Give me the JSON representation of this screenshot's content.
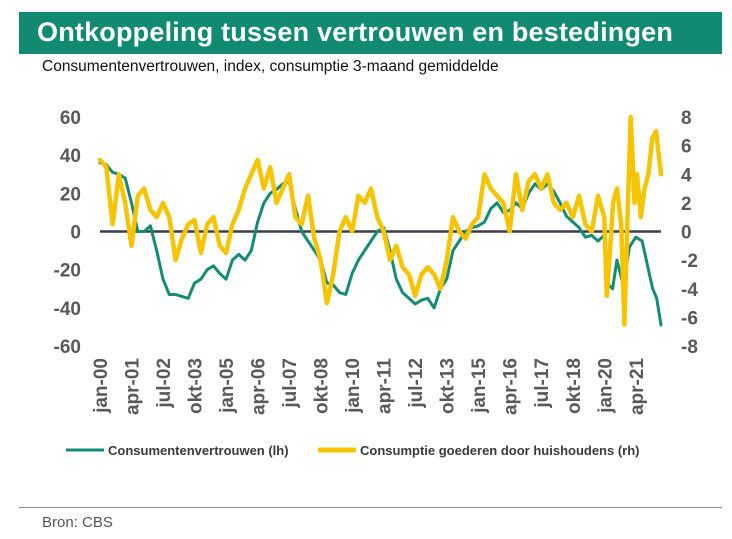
{
  "header": {
    "title": "Ontkoppeling tussen vertrouwen en bestedingen",
    "subtitle": "Consumentenvertrouwen, index, consumptie 3-maand gemiddelde"
  },
  "footer": {
    "source": "Bron: CBS"
  },
  "colors": {
    "title_bg": "#118a72",
    "series_lh": "#138c73",
    "series_rh": "#f6c400",
    "zero_line": "#3c3c4c",
    "axis_text": "#595959"
  },
  "chart_data": {
    "type": "line",
    "title": "Ontkoppeling tussen vertrouwen en bestedingen",
    "y_left": {
      "label": "",
      "lim": [
        -60,
        60
      ],
      "ticks": [
        60,
        40,
        20,
        0,
        -20,
        -40,
        -60
      ]
    },
    "y_right": {
      "label": "",
      "lim": [
        -8,
        8
      ],
      "ticks": [
        8,
        6,
        4,
        2,
        0,
        -2,
        -4,
        -6,
        -8
      ]
    },
    "x_range": [
      2000.0,
      2022.25
    ],
    "x_ticks": [
      {
        "label": "jan-00",
        "t": 2000.0
      },
      {
        "label": "apr-01",
        "t": 2001.25
      },
      {
        "label": "jul-02",
        "t": 2002.5
      },
      {
        "label": "okt-03",
        "t": 2003.75
      },
      {
        "label": "jan-05",
        "t": 2005.0
      },
      {
        "label": "apr-06",
        "t": 2006.25
      },
      {
        "label": "jul-07",
        "t": 2007.5
      },
      {
        "label": "okt-08",
        "t": 2008.75
      },
      {
        "label": "jan-10",
        "t": 2010.0
      },
      {
        "label": "apr-11",
        "t": 2011.25
      },
      {
        "label": "jul-12",
        "t": 2012.5
      },
      {
        "label": "okt-13",
        "t": 2013.75
      },
      {
        "label": "jan-15",
        "t": 2015.0
      },
      {
        "label": "apr-16",
        "t": 2016.25
      },
      {
        "label": "jul-17",
        "t": 2017.5
      },
      {
        "label": "okt-18",
        "t": 2018.75
      },
      {
        "label": "jan-20",
        "t": 2020.0
      },
      {
        "label": "apr-21",
        "t": 2021.25
      }
    ],
    "series": [
      {
        "name": "Consumentenvertrouwen (lh)",
        "axis": "left",
        "x": [
          2000.0,
          2000.25,
          2000.5,
          2000.75,
          2001.0,
          2001.25,
          2001.5,
          2001.75,
          2002.0,
          2002.25,
          2002.5,
          2002.75,
          2003.0,
          2003.25,
          2003.5,
          2003.75,
          2004.0,
          2004.25,
          2004.5,
          2004.75,
          2005.0,
          2005.25,
          2005.5,
          2005.75,
          2006.0,
          2006.25,
          2006.5,
          2006.75,
          2007.0,
          2007.25,
          2007.5,
          2007.75,
          2008.0,
          2008.25,
          2008.5,
          2008.75,
          2009.0,
          2009.25,
          2009.5,
          2009.75,
          2010.0,
          2010.25,
          2010.5,
          2010.75,
          2011.0,
          2011.25,
          2011.5,
          2011.75,
          2012.0,
          2012.25,
          2012.5,
          2012.75,
          2013.0,
          2013.25,
          2013.5,
          2013.75,
          2014.0,
          2014.25,
          2014.5,
          2014.75,
          2015.0,
          2015.25,
          2015.5,
          2015.75,
          2016.0,
          2016.25,
          2016.5,
          2016.75,
          2017.0,
          2017.25,
          2017.5,
          2017.75,
          2018.0,
          2018.25,
          2018.5,
          2018.75,
          2019.0,
          2019.25,
          2019.5,
          2019.75,
          2020.0,
          2020.17,
          2020.33,
          2020.5,
          2020.75,
          2021.0,
          2021.25,
          2021.5,
          2021.75,
          2021.92,
          2022.08,
          2022.25
        ],
        "values": [
          36,
          35,
          31,
          30,
          28,
          15,
          0,
          0,
          3,
          -10,
          -25,
          -33,
          -33,
          -34,
          -35,
          -27,
          -25,
          -20,
          -18,
          -22,
          -25,
          -15,
          -12,
          -15,
          -10,
          5,
          15,
          20,
          22,
          25,
          26,
          12,
          0,
          -5,
          -10,
          -15,
          -27,
          -28,
          -32,
          -33,
          -22,
          -15,
          -10,
          -5,
          0,
          2,
          -10,
          -25,
          -32,
          -35,
          -38,
          -36,
          -35,
          -40,
          -30,
          -25,
          -10,
          -5,
          0,
          2,
          3,
          5,
          12,
          15,
          10,
          11,
          15,
          12,
          20,
          25,
          22,
          25,
          21,
          15,
          8,
          5,
          2,
          -3,
          -2,
          -5,
          -2,
          -28,
          -30,
          -15,
          -28,
          -8,
          -3,
          -5,
          -20,
          -30,
          -35,
          -49
        ]
      },
      {
        "name": "Consumptie goederen door huishoudens (rh)",
        "axis": "right",
        "x": [
          2000.0,
          2000.25,
          2000.5,
          2000.75,
          2001.0,
          2001.25,
          2001.5,
          2001.75,
          2002.0,
          2002.25,
          2002.5,
          2002.75,
          2003.0,
          2003.25,
          2003.5,
          2003.75,
          2004.0,
          2004.25,
          2004.5,
          2004.75,
          2005.0,
          2005.25,
          2005.5,
          2005.75,
          2006.0,
          2006.25,
          2006.5,
          2006.75,
          2007.0,
          2007.25,
          2007.5,
          2007.75,
          2008.0,
          2008.25,
          2008.5,
          2008.75,
          2009.0,
          2009.25,
          2009.5,
          2009.75,
          2010.0,
          2010.25,
          2010.5,
          2010.75,
          2011.0,
          2011.25,
          2011.5,
          2011.75,
          2012.0,
          2012.25,
          2012.5,
          2012.75,
          2013.0,
          2013.25,
          2013.5,
          2013.75,
          2014.0,
          2014.25,
          2014.5,
          2014.75,
          2015.0,
          2015.25,
          2015.5,
          2015.75,
          2016.0,
          2016.25,
          2016.5,
          2016.75,
          2017.0,
          2017.25,
          2017.5,
          2017.75,
          2018.0,
          2018.25,
          2018.5,
          2018.75,
          2019.0,
          2019.25,
          2019.5,
          2019.75,
          2020.0,
          2020.1,
          2020.2,
          2020.35,
          2020.5,
          2020.67,
          2020.8,
          2020.92,
          2021.05,
          2021.2,
          2021.3,
          2021.45,
          2021.6,
          2021.75,
          2021.9,
          2022.05,
          2022.15,
          2022.25
        ],
        "values": [
          5,
          4.5,
          0.5,
          4,
          2,
          -1,
          2.5,
          3,
          1.5,
          1,
          2,
          1,
          -2,
          -0.5,
          0.5,
          0.8,
          -1.5,
          0.5,
          1,
          -1,
          -1.5,
          0.5,
          1.5,
          3,
          4,
          5,
          3,
          4.5,
          2,
          3,
          4,
          1,
          0.5,
          2.5,
          -0.5,
          -2,
          -5,
          -3,
          0,
          1,
          0,
          2.5,
          2,
          3,
          1,
          0,
          -2,
          -1,
          -2.5,
          -3,
          -4.5,
          -3,
          -2.5,
          -3,
          -4,
          -2,
          1,
          0,
          -0.5,
          0.5,
          1,
          4,
          3,
          2.5,
          2,
          0,
          4,
          1.5,
          3.5,
          4,
          3,
          4,
          2,
          1.5,
          2,
          1,
          2.5,
          0.5,
          0,
          2.5,
          1,
          -4.5,
          -2,
          2,
          3,
          0.5,
          -6.5,
          1,
          8,
          2,
          4,
          1,
          3,
          4,
          6.5,
          7,
          5.5,
          4
        ]
      }
    ]
  }
}
